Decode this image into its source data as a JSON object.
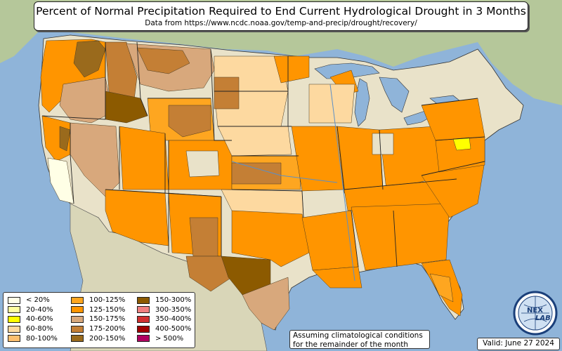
{
  "title": {
    "main": "Percent of Normal Precipitation Required to End Current Hydrological Drought in 3 Months",
    "sub": "Data from https://www.ncdc.noaa.gov/temp-and-precip/drought/recovery/"
  },
  "legend": {
    "items": [
      {
        "label": "< 20%",
        "color": "#ffffe6"
      },
      {
        "label": "20-40%",
        "color": "#ffffa0"
      },
      {
        "label": "40-60%",
        "color": "#ffff00"
      },
      {
        "label": "60-80%",
        "color": "#fdd9a0"
      },
      {
        "label": "80-100%",
        "color": "#fdbf6f"
      },
      {
        "label": "100-125%",
        "color": "#fea620"
      },
      {
        "label": "125-150%",
        "color": "#ff9500"
      },
      {
        "label": "150-175%",
        "color": "#d8a87c"
      },
      {
        "label": "175-200%",
        "color": "#c47f35"
      },
      {
        "label": "200-150%",
        "color": "#9a6a1c"
      },
      {
        "label": "150-300%",
        "color": "#8c5a00"
      },
      {
        "label": "300-350%",
        "color": "#f08080"
      },
      {
        "label": "350-400%",
        "color": "#d03030"
      },
      {
        "label": "400-500%",
        "color": "#a00000"
      },
      {
        "label": "> 500%",
        "color": "#b00060"
      }
    ]
  },
  "note": {
    "line1": "Assuming climatological conditions",
    "line2": "for the remainder of the month"
  },
  "valid": "Valid: June 27 2024",
  "logo": {
    "text": "NEXLAB",
    "part1": "NEX",
    "part2": "LAB",
    "icon": "globe-icon"
  },
  "colors": {
    "ocean": "#8fb4d9",
    "land": "#e9e2c9",
    "green_land": "#b9c9a0",
    "lake": "#8fb4d9"
  }
}
